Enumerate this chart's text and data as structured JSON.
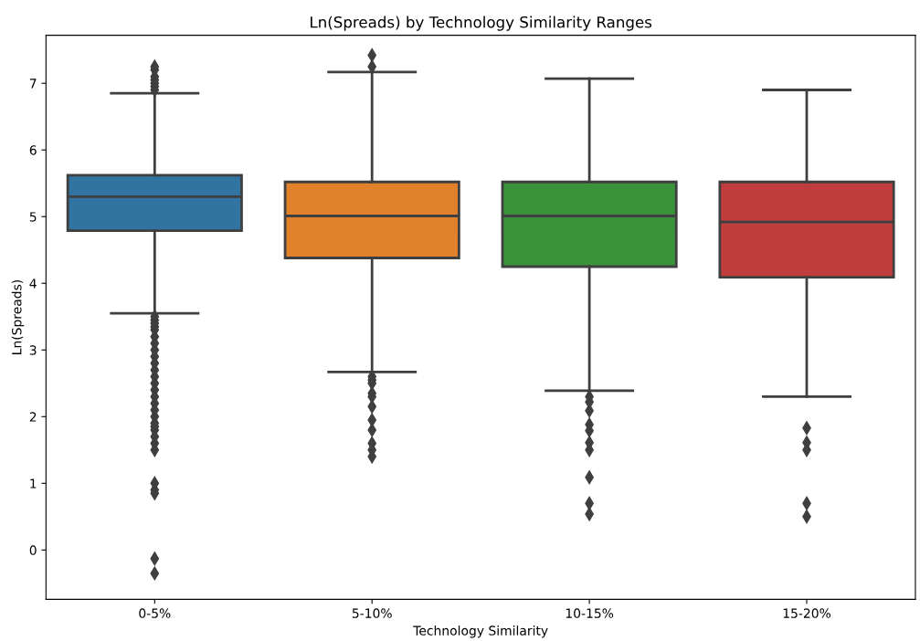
{
  "chart_data": {
    "type": "box",
    "title": "Ln(Spreads) by Technology Similarity Ranges",
    "xlabel": "Technology Similarity",
    "ylabel": "Ln(Spreads)",
    "categories": [
      "0-5%",
      "5-10%",
      "10-15%",
      "15-20%"
    ],
    "colors": [
      "#3274a1",
      "#e1812c",
      "#3a923a",
      "#c03d3e"
    ],
    "boxes": [
      {
        "low": 3.55,
        "q1": 4.79,
        "median": 5.3,
        "q3": 5.62,
        "high": 6.85,
        "outliers": [
          6.9,
          6.95,
          7.0,
          7.05,
          7.1,
          7.2,
          7.25,
          3.5,
          3.45,
          3.4,
          3.35,
          3.3,
          3.2,
          3.1,
          3.0,
          2.9,
          2.8,
          2.7,
          2.6,
          2.5,
          2.4,
          2.3,
          2.2,
          2.1,
          2.0,
          1.9,
          1.85,
          1.8,
          1.7,
          1.6,
          1.5,
          1.0,
          0.9,
          0.85,
          -0.13,
          -0.35
        ]
      },
      {
        "low": 2.67,
        "q1": 4.38,
        "median": 5.01,
        "q3": 5.52,
        "high": 7.17,
        "outliers": [
          7.25,
          7.42,
          2.6,
          2.55,
          2.5,
          2.35,
          2.3,
          2.15,
          1.95,
          1.8,
          1.6,
          1.5,
          1.4
        ]
      },
      {
        "low": 2.39,
        "q1": 4.25,
        "median": 5.01,
        "q3": 5.52,
        "high": 7.07,
        "outliers": [
          2.3,
          2.22,
          2.09,
          1.88,
          1.79,
          1.61,
          1.5,
          1.09,
          0.7,
          0.54
        ]
      },
      {
        "low": 2.3,
        "q1": 4.09,
        "median": 4.92,
        "q3": 5.52,
        "high": 6.9,
        "outliers": [
          1.83,
          1.61,
          1.5,
          0.7,
          0.5
        ]
      }
    ],
    "ylim": [
      -0.74,
      7.72
    ],
    "yticks": [
      0,
      1,
      2,
      3,
      4,
      5,
      6,
      7
    ],
    "marker": "diamond",
    "grid": false
  }
}
